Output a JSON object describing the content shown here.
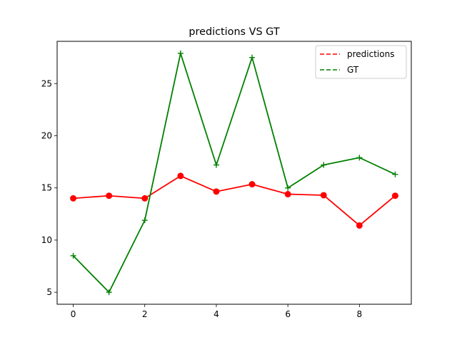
{
  "chart_data": {
    "type": "line",
    "title": "predictions VS GT",
    "xlabel": "",
    "ylabel": "",
    "xlim": [
      -0.45,
      9.45
    ],
    "ylim": [
      3.85,
      29.05
    ],
    "x_ticks": [
      0,
      2,
      4,
      6,
      8
    ],
    "y_ticks": [
      5,
      10,
      15,
      20,
      25
    ],
    "grid": false,
    "legend_position": "top-right",
    "x": [
      0,
      1,
      2,
      3,
      4,
      5,
      6,
      7,
      8,
      9
    ],
    "series": [
      {
        "name": "predictions",
        "color": "#ff0000",
        "marker": "circle",
        "legend_line_style": "dashed",
        "values": [
          14.0,
          14.25,
          14.0,
          16.15,
          14.65,
          15.35,
          14.4,
          14.3,
          11.4,
          14.25
        ]
      },
      {
        "name": "GT",
        "color": "#008000",
        "marker": "plus",
        "legend_line_style": "dashed",
        "values": [
          8.5,
          5.0,
          11.9,
          27.9,
          17.2,
          27.5,
          15.0,
          17.2,
          17.9,
          16.3
        ]
      }
    ]
  }
}
